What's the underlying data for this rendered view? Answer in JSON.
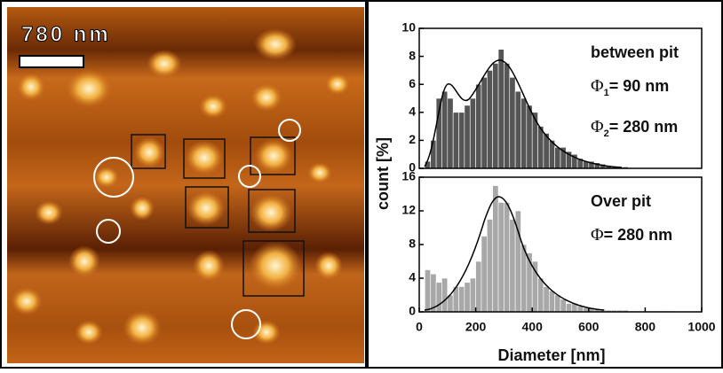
{
  "image": {
    "scale_label": "780 nm"
  },
  "chart_data": [
    {
      "type": "histogram",
      "ylabel": "count [%]",
      "annotations": {
        "title": "between pit",
        "phi1": {
          "symbol": "Φ",
          "subscript": "1",
          "text": "= 90 nm"
        },
        "phi2": {
          "symbol": "Φ",
          "subscript": "2",
          "text": "= 280 nm"
        }
      },
      "bins": [
        0,
        20,
        40,
        60,
        80,
        100,
        120,
        140,
        160,
        180,
        200,
        220,
        240,
        260,
        280,
        300,
        320,
        340,
        360,
        380,
        400,
        420,
        440,
        460,
        480,
        500,
        520,
        540,
        560,
        580,
        600,
        620,
        640,
        660,
        680,
        700,
        720,
        740,
        760,
        780,
        800,
        820,
        840,
        860,
        880,
        900
      ],
      "values": [
        0,
        0.5,
        2,
        5,
        5.5,
        5,
        4,
        4,
        4.5,
        5,
        6,
        6.5,
        7,
        7.5,
        8.5,
        7.5,
        6.5,
        5.5,
        5,
        4.5,
        4,
        3,
        2.5,
        2,
        1.5,
        1.5,
        1.2,
        1,
        0.7,
        0.5,
        0.5,
        0.4,
        0.3,
        0.2,
        0.1,
        0.1,
        0.1,
        0,
        0,
        0,
        0,
        0,
        0,
        0,
        0
      ],
      "color": "#555555",
      "xlim": [
        0,
        1000
      ],
      "ylim": [
        0,
        10
      ],
      "yticks": [
        0,
        2,
        4,
        6,
        8,
        10
      ]
    },
    {
      "type": "histogram",
      "xlabel": "Diameter [nm]",
      "annotations": {
        "title": "Over pit",
        "phi": {
          "symbol": "Φ",
          "text": "= 280 nm"
        }
      },
      "bins": [
        0,
        20,
        40,
        60,
        80,
        100,
        120,
        140,
        160,
        180,
        200,
        220,
        240,
        260,
        280,
        300,
        320,
        340,
        360,
        380,
        400,
        420,
        440,
        460,
        480,
        500,
        520,
        540,
        560,
        580,
        600,
        620,
        640,
        660,
        680,
        700,
        720,
        740,
        760,
        780,
        800,
        820,
        840,
        860,
        880,
        900
      ],
      "values": [
        0,
        5,
        4.5,
        3.5,
        4,
        2,
        3,
        3,
        3.5,
        4,
        6,
        9,
        11,
        15,
        13,
        13,
        11,
        12,
        8,
        7,
        6,
        4,
        3,
        2.5,
        2,
        1.5,
        1,
        1,
        0.7,
        0.5,
        0.5,
        0.4,
        0.3,
        0.2,
        0.2,
        0.2,
        0.2,
        0.1,
        0.1,
        0.1,
        0.1,
        0.1,
        0.1,
        0.1,
        0.1
      ],
      "color": "#a8a8a8",
      "xlim": [
        0,
        1000
      ],
      "xticks": [
        0,
        200,
        400,
        600,
        800,
        1000
      ],
      "ylim": [
        0,
        16
      ],
      "yticks": [
        0,
        4,
        8,
        12,
        16
      ]
    }
  ]
}
